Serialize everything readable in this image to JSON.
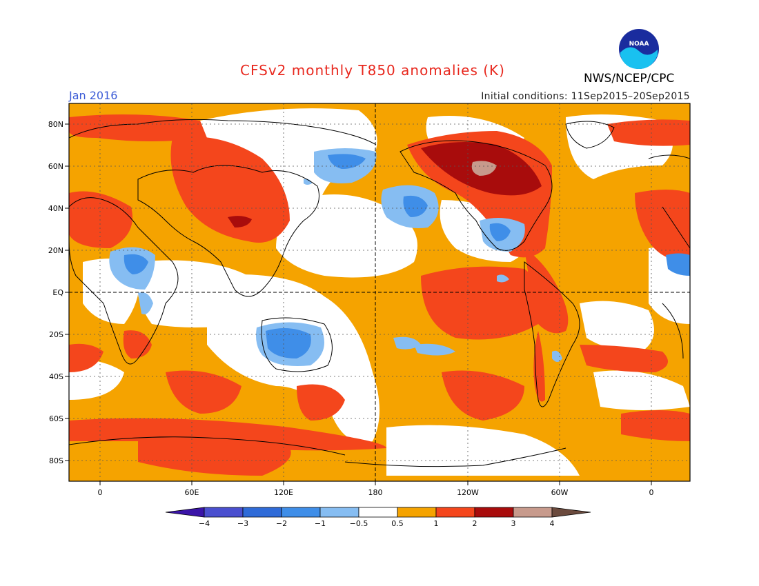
{
  "header": {
    "title": "CFSv2 monthly T850 anomalies (K)",
    "month": "Jan 2016",
    "initial_conditions": "Initial conditions: 11Sep2015–20Sep2015",
    "agency": "NWS/NCEP/CPC",
    "logo_text": "NOAA"
  },
  "map": {
    "lat_labels": [
      "80N",
      "60N",
      "40N",
      "20N",
      "EQ",
      "20S",
      "40S",
      "60S",
      "80S"
    ],
    "lon_labels": [
      "0",
      "60E",
      "120E",
      "180",
      "120W",
      "60W",
      "0"
    ]
  },
  "colorbar": {
    "labels": [
      "−4",
      "−3",
      "−2",
      "−1",
      "−0.5",
      "0.5",
      "1",
      "2",
      "3",
      "4"
    ],
    "colors": [
      "#3a14a8",
      "#4a4fcf",
      "#2f6bd8",
      "#3f8ee8",
      "#86bdf2",
      "#ffffff",
      "#f5a300",
      "#f4461c",
      "#a80c0c",
      "#c79a8c",
      "#6b4a3d"
    ]
  },
  "colors": {
    "title": "#e8281e",
    "month": "#3b5bd6"
  }
}
